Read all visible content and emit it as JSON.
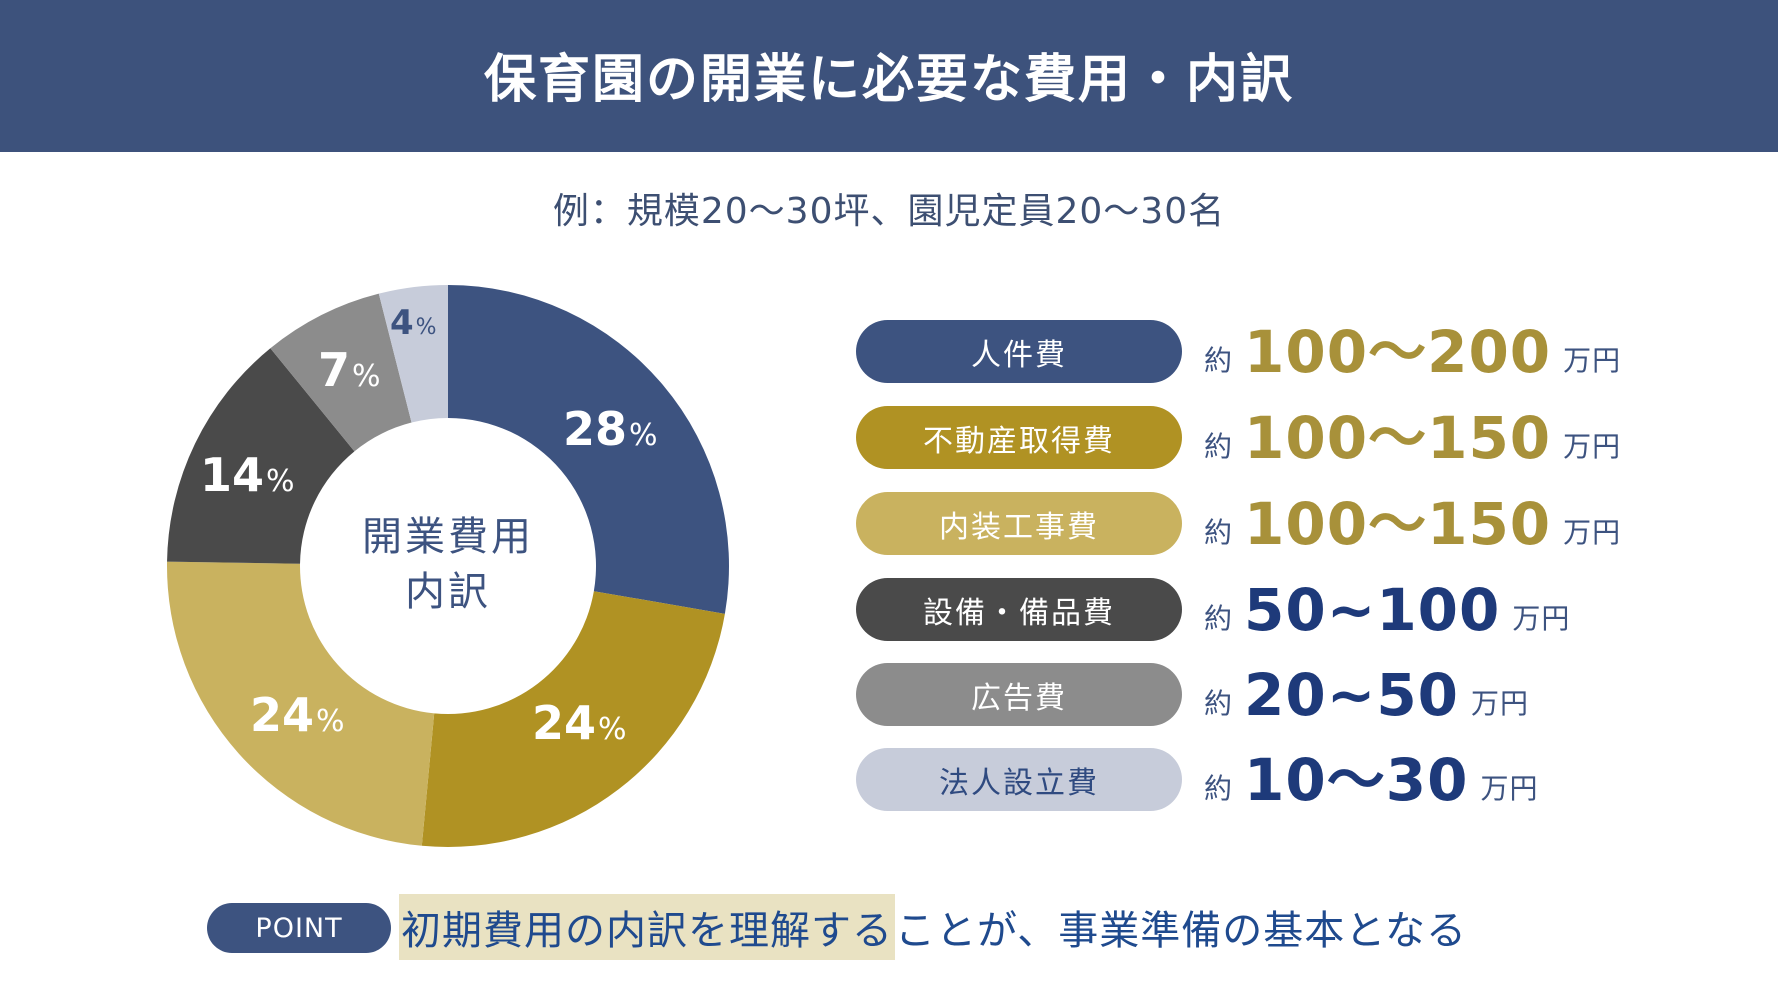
{
  "header": {
    "title": "保育園の開業に必要な費用・内訳"
  },
  "subtitle": "例：規模20〜30坪、園児定員20〜30名",
  "chart_data": {
    "type": "pie",
    "variant": "donut",
    "title": "開業費用 内訳",
    "center_label": [
      "開業費用",
      "内訳"
    ],
    "categories": [
      "人件費",
      "不動産取得費",
      "内装工事費",
      "設備・備品費",
      "広告費",
      "法人設立費"
    ],
    "values": [
      28,
      24,
      24,
      14,
      7,
      4
    ],
    "unit": "%",
    "colors": [
      "#3d5380",
      "#b09223",
      "#c9b25f",
      "#4a4a4a",
      "#8c8c8c",
      "#c7ccda"
    ],
    "start_angle_deg": 0,
    "direction": "clockwise",
    "legend_position": "right"
  },
  "slices": [
    {
      "value": "28",
      "pct": "%"
    },
    {
      "value": "24",
      "pct": "%"
    },
    {
      "value": "24",
      "pct": "%"
    },
    {
      "value": "14",
      "pct": "%"
    },
    {
      "value": "7",
      "pct": "%"
    },
    {
      "value": "4",
      "pct": "%"
    }
  ],
  "center": {
    "line1": "開業費用",
    "line2": "内訳"
  },
  "legend": [
    {
      "label": "人件費",
      "approx": "約",
      "amount": "100〜200",
      "unit": "万円",
      "pill_color": "#3d5380",
      "text_color": "#ffffff",
      "amount_color": "#a8913a"
    },
    {
      "label": "不動産取得費",
      "approx": "約",
      "amount": "100〜150",
      "unit": "万円",
      "pill_color": "#b09223",
      "text_color": "#ffffff",
      "amount_color": "#a8913a"
    },
    {
      "label": "内装工事費",
      "approx": "約",
      "amount": "100〜150",
      "unit": "万円",
      "pill_color": "#c9b25f",
      "text_color": "#ffffff",
      "amount_color": "#a8913a"
    },
    {
      "label": "設備・備品費",
      "approx": "約",
      "amount": "50~100",
      "unit": "万円",
      "pill_color": "#4a4a4a",
      "text_color": "#ffffff",
      "amount_color": "#1e3a7a"
    },
    {
      "label": "広告費",
      "approx": "約",
      "amount": "20~50",
      "unit": "万円",
      "pill_color": "#8c8c8c",
      "text_color": "#ffffff",
      "amount_color": "#1e3a7a"
    },
    {
      "label": "法人設立費",
      "approx": "約",
      "amount": "10〜30",
      "unit": "万円",
      "pill_color": "#c7ccda",
      "text_color": "#2f4a80",
      "amount_color": "#1e3a7a"
    }
  ],
  "point": {
    "badge": "POINT",
    "highlight": "初期費用の内訳を理解する",
    "rest": "ことが、事業準備の基本となる"
  }
}
